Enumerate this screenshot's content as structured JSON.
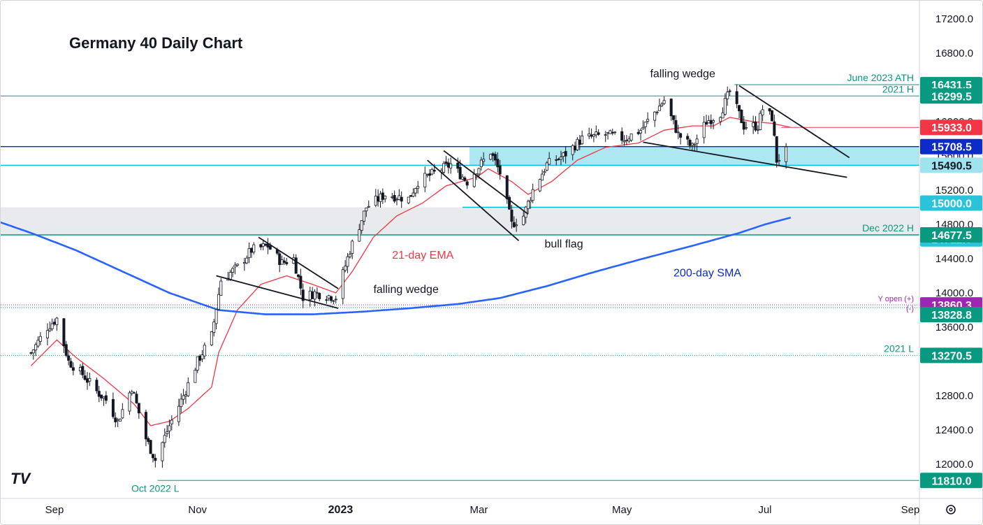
{
  "chart_data": {
    "type": "candlestick",
    "title": "Germany 40 Daily Chart",
    "y_axis": {
      "range": [
        11700,
        17400
      ],
      "ticks": [
        "17200.0",
        "16800.0",
        "16400.0",
        "16000.0",
        "15600.0",
        "15200.0",
        "14800.0",
        "14400.0",
        "14000.0",
        "13600.0",
        "12800.0",
        "12400.0",
        "12000.0"
      ]
    },
    "x_axis": {
      "labels": [
        {
          "label": "Sep",
          "date": "2022-09-01"
        },
        {
          "label": "Nov",
          "date": "2022-11-01"
        },
        {
          "label": "2023",
          "date": "2023-01-01"
        },
        {
          "label": "Mar",
          "date": "2023-03-01"
        },
        {
          "label": "May",
          "date": "2023-05-01"
        },
        {
          "label": "Jul",
          "date": "2023-07-01"
        },
        {
          "label": "Sep",
          "date": "2023-09-01"
        }
      ]
    },
    "price_levels": [
      {
        "value": 16431.5,
        "tag": "16431.5",
        "label": "June 2023 ATH",
        "color": "#089981"
      },
      {
        "value": 16299.5,
        "tag": "16299.5",
        "label": "2021 H",
        "color": "#089981"
      },
      {
        "value": 15933.0,
        "tag": "15933.0",
        "label": "",
        "color": "#f23645"
      },
      {
        "value": 15708.5,
        "tag": "15708.5",
        "label": "",
        "color": "#0d2bc9"
      },
      {
        "value": 15490.5,
        "tag": "15490.5",
        "label": "",
        "color": "#00bcd4"
      },
      {
        "value": 15000.0,
        "tag": "15000.0",
        "label": "",
        "color": "#00bcd4"
      },
      {
        "value": 14712.5,
        "tag": "14712.5",
        "label": "",
        "color": "#00bcd4"
      },
      {
        "value": 14677.5,
        "tag": "14677.5",
        "label": "Dec 2022 H",
        "color": "#089981"
      },
      {
        "value": 13860.3,
        "tag": "13860.3",
        "label": "Y open (+)",
        "label2": "(-)",
        "color": "#9c27b0"
      },
      {
        "value": 13828.8,
        "tag": "13828.8",
        "label": "",
        "color": "#089981"
      },
      {
        "value": 13270.5,
        "tag": "13270.5",
        "label": "2021 L",
        "color": "#089981"
      },
      {
        "value": 11810.0,
        "tag": "11810.0",
        "label": "Oct 2022 L",
        "color": "#089981"
      }
    ],
    "zones": [
      {
        "from": 15490.5,
        "to": 15708.5,
        "color": "#9fe3ef"
      },
      {
        "from": 14677.5,
        "to": 15000.0,
        "color": "#e9eaee"
      }
    ],
    "ohlc_anchor_closes": [
      [
        "2022-08-22",
        13300
      ],
      [
        "2022-08-29",
        13600
      ],
      [
        "2022-09-02",
        13700
      ],
      [
        "2022-09-07",
        13200
      ],
      [
        "2022-09-13",
        13050
      ],
      [
        "2022-09-19",
        12850
      ],
      [
        "2022-09-23",
        12750
      ],
      [
        "2022-09-28",
        12500
      ],
      [
        "2022-10-04",
        12900
      ],
      [
        "2022-10-10",
        12300
      ],
      [
        "2022-10-14",
        12050
      ],
      [
        "2022-10-20",
        12450
      ],
      [
        "2022-10-26",
        12800
      ],
      [
        "2022-11-01",
        13200
      ],
      [
        "2022-11-07",
        13500
      ],
      [
        "2022-11-11",
        14150
      ],
      [
        "2022-11-18",
        14300
      ],
      [
        "2022-11-24",
        14500
      ],
      [
        "2022-12-01",
        14550
      ],
      [
        "2022-12-07",
        14350
      ],
      [
        "2022-12-12",
        14400
      ],
      [
        "2022-12-16",
        13950
      ],
      [
        "2022-12-21",
        14000
      ],
      [
        "2022-12-30",
        13950
      ],
      [
        "2023-01-05",
        14500
      ],
      [
        "2023-01-12",
        15000
      ],
      [
        "2023-01-20",
        15150
      ],
      [
        "2023-01-30",
        15100
      ],
      [
        "2023-02-03",
        15300
      ],
      [
        "2023-02-10",
        15400
      ],
      [
        "2023-02-17",
        15500
      ],
      [
        "2023-02-24",
        15300
      ],
      [
        "2023-03-06",
        15650
      ],
      [
        "2023-03-10",
        15400
      ],
      [
        "2023-03-15",
        14800
      ],
      [
        "2023-03-20",
        14900
      ],
      [
        "2023-03-24",
        15200
      ],
      [
        "2023-03-30",
        15500
      ],
      [
        "2023-04-06",
        15600
      ],
      [
        "2023-04-14",
        15800
      ],
      [
        "2023-04-24",
        15850
      ],
      [
        "2023-05-02",
        15800
      ],
      [
        "2023-05-09",
        15900
      ],
      [
        "2023-05-19",
        16250
      ],
      [
        "2023-05-25",
        15850
      ],
      [
        "2023-05-31",
        15700
      ],
      [
        "2023-06-06",
        16000
      ],
      [
        "2023-06-12",
        16100
      ],
      [
        "2023-06-16",
        16350
      ],
      [
        "2023-06-22",
        15950
      ],
      [
        "2023-06-28",
        15950
      ],
      [
        "2023-06-30",
        16150
      ],
      [
        "2023-07-04",
        16050
      ],
      [
        "2023-07-06",
        15550
      ],
      [
        "2023-07-10",
        15650
      ]
    ],
    "ema21_anchors": [
      [
        "2022-08-22",
        13150
      ],
      [
        "2022-09-02",
        13450
      ],
      [
        "2022-09-10",
        13250
      ],
      [
        "2022-09-22",
        13000
      ],
      [
        "2022-10-05",
        12700
      ],
      [
        "2022-10-12",
        12450
      ],
      [
        "2022-10-20",
        12500
      ],
      [
        "2022-10-28",
        12650
      ],
      [
        "2022-11-07",
        12900
      ],
      [
        "2022-11-10",
        13300
      ],
      [
        "2022-11-18",
        13800
      ],
      [
        "2022-11-28",
        14100
      ],
      [
        "2022-12-09",
        14200
      ],
      [
        "2022-12-20",
        14100
      ],
      [
        "2022-12-30",
        14000
      ],
      [
        "2023-01-06",
        14250
      ],
      [
        "2023-01-15",
        14650
      ],
      [
        "2023-01-25",
        14900
      ],
      [
        "2023-02-05",
        15050
      ],
      [
        "2023-02-15",
        15250
      ],
      [
        "2023-02-28",
        15350
      ],
      [
        "2023-03-05",
        15450
      ],
      [
        "2023-03-15",
        15300
      ],
      [
        "2023-03-22",
        15150
      ],
      [
        "2023-04-01",
        15300
      ],
      [
        "2023-04-12",
        15550
      ],
      [
        "2023-04-24",
        15700
      ],
      [
        "2023-05-08",
        15750
      ],
      [
        "2023-05-19",
        15900
      ],
      [
        "2023-05-31",
        15950
      ],
      [
        "2023-06-09",
        15950
      ],
      [
        "2023-06-16",
        16050
      ],
      [
        "2023-06-26",
        16000
      ],
      [
        "2023-07-04",
        15980
      ],
      [
        "2023-07-12",
        15933
      ]
    ],
    "sma200_anchors": [
      [
        "2022-08-01",
        14900
      ],
      [
        "2022-08-22",
        14700
      ],
      [
        "2022-09-10",
        14500
      ],
      [
        "2022-09-30",
        14250
      ],
      [
        "2022-10-20",
        14000
      ],
      [
        "2022-11-10",
        13800
      ],
      [
        "2022-11-30",
        13750
      ],
      [
        "2022-12-20",
        13750
      ],
      [
        "2023-01-10",
        13780
      ],
      [
        "2023-01-30",
        13820
      ],
      [
        "2023-02-20",
        13870
      ],
      [
        "2023-03-10",
        13940
      ],
      [
        "2023-03-30",
        14080
      ],
      [
        "2023-04-20",
        14250
      ],
      [
        "2023-05-10",
        14400
      ],
      [
        "2023-05-31",
        14550
      ],
      [
        "2023-06-20",
        14700
      ],
      [
        "2023-07-01",
        14800
      ],
      [
        "2023-07-12",
        14880
      ]
    ],
    "trendlines": [
      {
        "from": [
          "2022-11-09",
          14200
        ],
        "to": [
          "2022-12-31",
          13820
        ]
      },
      {
        "from": [
          "2022-11-27",
          14650
        ],
        "to": [
          "2022-12-31",
          14050
        ]
      },
      {
        "from": [
          "2023-02-14",
          15660
        ],
        "to": [
          "2023-03-22",
          14920
        ]
      },
      {
        "from": [
          "2023-02-07",
          15550
        ],
        "to": [
          "2023-03-18",
          14610
        ]
      },
      {
        "from": [
          "2023-05-10",
          15760
        ],
        "to": [
          "2023-08-05",
          15350
        ]
      },
      {
        "from": [
          "2023-06-20",
          16420
        ],
        "to": [
          "2023-08-06",
          15580
        ]
      }
    ],
    "annotations": [
      {
        "text": "falling wedge",
        "date": "2023-05-13",
        "value": 16520,
        "color": "#131722"
      },
      {
        "text": "21-day EMA",
        "date": "2023-01-23",
        "value": 14400,
        "color": "#f23645"
      },
      {
        "text": "falling wedge",
        "date": "2023-01-15",
        "value": 14000,
        "color": "#131722"
      },
      {
        "text": "bull flag",
        "date": "2023-03-29",
        "value": 14530,
        "color": "#131722"
      },
      {
        "text": "200-day SMA",
        "date": "2023-05-23",
        "value": 14190,
        "color": "#0d2bc9"
      }
    ],
    "colors": {
      "up": "#131722",
      "down": "#131722",
      "ema": "#f23645",
      "sma": "#2962ff",
      "text": "#131722",
      "axis_text": "#131722"
    }
  },
  "ui": {
    "logo_text": "TV",
    "settings_icon": "gear-icon"
  }
}
